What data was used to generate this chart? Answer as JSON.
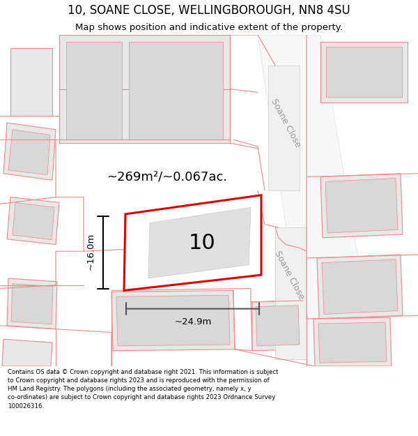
{
  "title": "10, SOANE CLOSE, WELLINGBOROUGH, NN8 4SU",
  "subtitle": "Map shows position and indicative extent of the property.",
  "footer": "Contains OS data © Crown copyright and database right 2021. This information is subject\nto Crown copyright and database rights 2023 and is reproduced with the permission of\nHM Land Registry. The polygons (including the associated geometry, namely x, y\nco-ordinates) are subject to Crown copyright and database rights 2023 Ordnance Survey\n100026316.",
  "bg_color": "#ffffff",
  "area_text": "~269m²/~0.067ac.",
  "plot_number": "10",
  "dim_width": "~24.9m",
  "dim_height": "~16.0m",
  "street_label": "Soane Close",
  "gray_fill": "#e8e8e8",
  "light_gray_fill": "#f0f0f0",
  "red_line": "#f08888",
  "plot_red": "#dd0000",
  "road_fill": "#f8f8f8"
}
